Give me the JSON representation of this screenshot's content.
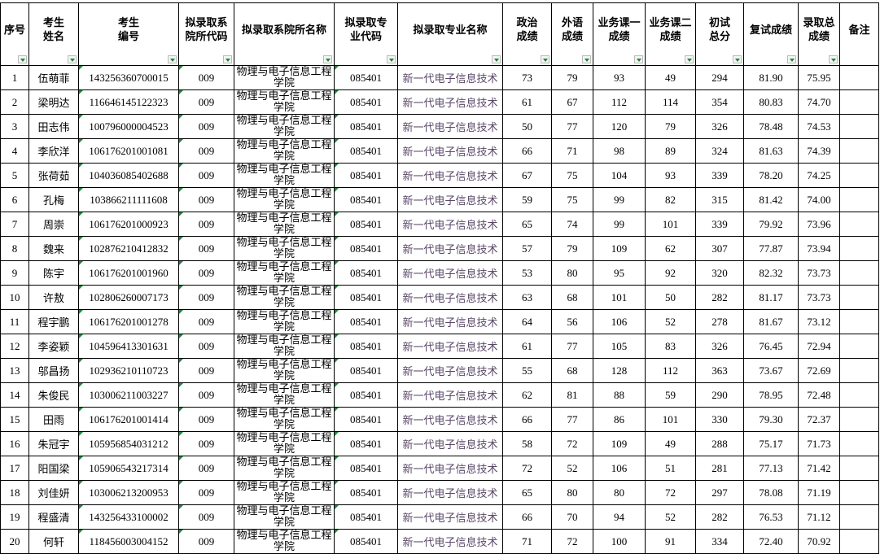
{
  "headers": [
    "序号",
    "考生姓名",
    "考生编号",
    "拟录取系院所代码",
    "拟录取系院所名称",
    "拟录取专业代码",
    "拟录取专业名称",
    "政治成绩",
    "外语成绩",
    "业务课一成绩",
    "业务课二成绩",
    "初试总分",
    "复试成绩",
    "录取总成绩",
    "备注"
  ],
  "header_lines": [
    [
      "序号"
    ],
    [
      "考生",
      "姓名"
    ],
    [
      "考生",
      "编号"
    ],
    [
      "拟录取系",
      "院所代码"
    ],
    [
      "拟录取系院所名称"
    ],
    [
      "拟录取专",
      "业代码"
    ],
    [
      "拟录取专业名称"
    ],
    [
      "政治",
      "成绩"
    ],
    [
      "外语",
      "成绩"
    ],
    [
      "业务课一",
      "成绩"
    ],
    [
      "业务课二",
      "成绩"
    ],
    [
      "初试",
      "总分"
    ],
    [
      "复试成绩"
    ],
    [
      "录取总",
      "成绩"
    ],
    [
      "备注"
    ]
  ],
  "rows": [
    [
      "1",
      "伍萌菲",
      "143256360700015",
      "009",
      "物理与电子信息工程学院",
      "085401",
      "新一代电子信息技术",
      "73",
      "79",
      "93",
      "49",
      "294",
      "81.90",
      "75.95",
      ""
    ],
    [
      "2",
      "梁明达",
      "116646145122323",
      "009",
      "物理与电子信息工程学院",
      "085401",
      "新一代电子信息技术",
      "61",
      "67",
      "112",
      "114",
      "354",
      "80.83",
      "74.70",
      ""
    ],
    [
      "3",
      "田志伟",
      "100796000004523",
      "009",
      "物理与电子信息工程学院",
      "085401",
      "新一代电子信息技术",
      "50",
      "77",
      "120",
      "79",
      "326",
      "78.48",
      "74.53",
      ""
    ],
    [
      "4",
      "李欣洋",
      "106176201001081",
      "009",
      "物理与电子信息工程学院",
      "085401",
      "新一代电子信息技术",
      "66",
      "71",
      "98",
      "89",
      "324",
      "81.63",
      "74.39",
      ""
    ],
    [
      "5",
      "张荷茹",
      "104036085402688",
      "009",
      "物理与电子信息工程学院",
      "085401",
      "新一代电子信息技术",
      "67",
      "75",
      "104",
      "93",
      "339",
      "78.20",
      "74.25",
      ""
    ],
    [
      "6",
      "孔梅",
      "103866211111608",
      "009",
      "物理与电子信息工程学院",
      "085401",
      "新一代电子信息技术",
      "59",
      "75",
      "99",
      "82",
      "315",
      "81.42",
      "74.00",
      ""
    ],
    [
      "7",
      "周崇",
      "106176201000923",
      "009",
      "物理与电子信息工程学院",
      "085401",
      "新一代电子信息技术",
      "65",
      "74",
      "99",
      "101",
      "339",
      "79.92",
      "73.96",
      ""
    ],
    [
      "8",
      "魏来",
      "102876210412832",
      "009",
      "物理与电子信息工程学院",
      "085401",
      "新一代电子信息技术",
      "57",
      "79",
      "109",
      "62",
      "307",
      "77.87",
      "73.94",
      ""
    ],
    [
      "9",
      "陈宇",
      "106176201001960",
      "009",
      "物理与电子信息工程学院",
      "085401",
      "新一代电子信息技术",
      "53",
      "80",
      "95",
      "92",
      "320",
      "82.32",
      "73.73",
      ""
    ],
    [
      "10",
      "许敖",
      "102806260007173",
      "009",
      "物理与电子信息工程学院",
      "085401",
      "新一代电子信息技术",
      "63",
      "68",
      "101",
      "50",
      "282",
      "81.17",
      "73.73",
      ""
    ],
    [
      "11",
      "程宇鹏",
      "106176201001278",
      "009",
      "物理与电子信息工程学院",
      "085401",
      "新一代电子信息技术",
      "64",
      "56",
      "106",
      "52",
      "278",
      "81.67",
      "73.12",
      ""
    ],
    [
      "12",
      "李姿颖",
      "104596413301631",
      "009",
      "物理与电子信息工程学院",
      "085401",
      "新一代电子信息技术",
      "61",
      "77",
      "105",
      "83",
      "326",
      "76.45",
      "72.94",
      ""
    ],
    [
      "13",
      "邬昌扬",
      "102936210110723",
      "009",
      "物理与电子信息工程学院",
      "085401",
      "新一代电子信息技术",
      "55",
      "68",
      "128",
      "112",
      "363",
      "73.67",
      "72.69",
      ""
    ],
    [
      "14",
      "朱俊民",
      "103006211003227",
      "009",
      "物理与电子信息工程学院",
      "085401",
      "新一代电子信息技术",
      "62",
      "81",
      "88",
      "59",
      "290",
      "78.95",
      "72.48",
      ""
    ],
    [
      "15",
      "田雨",
      "106176201001414",
      "009",
      "物理与电子信息工程学院",
      "085401",
      "新一代电子信息技术",
      "66",
      "77",
      "86",
      "101",
      "330",
      "79.30",
      "72.37",
      ""
    ],
    [
      "16",
      "朱冠宇",
      "105956854031212",
      "009",
      "物理与电子信息工程学院",
      "085401",
      "新一代电子信息技术",
      "58",
      "72",
      "109",
      "49",
      "288",
      "75.17",
      "71.73",
      ""
    ],
    [
      "17",
      "阳国梁",
      "105906543217314",
      "009",
      "物理与电子信息工程学院",
      "085401",
      "新一代电子信息技术",
      "72",
      "52",
      "106",
      "51",
      "281",
      "77.13",
      "71.42",
      ""
    ],
    [
      "18",
      "刘佳妍",
      "103006213200953",
      "009",
      "物理与电子信息工程学院",
      "085401",
      "新一代电子信息技术",
      "65",
      "80",
      "80",
      "72",
      "297",
      "78.08",
      "71.19",
      ""
    ],
    [
      "19",
      "程盛清",
      "143256433100002",
      "009",
      "物理与电子信息工程学院",
      "085401",
      "新一代电子信息技术",
      "66",
      "70",
      "94",
      "52",
      "282",
      "76.53",
      "71.12",
      ""
    ],
    [
      "20",
      "何轩",
      "118456003004152",
      "009",
      "物理与电子信息工程学院",
      "085401",
      "新一代电子信息技术",
      "71",
      "72",
      "100",
      "91",
      "334",
      "72.40",
      "70.92",
      ""
    ]
  ],
  "colors": {
    "filter_arrow": "#1a8a3a",
    "major_text": "#5a4868"
  }
}
